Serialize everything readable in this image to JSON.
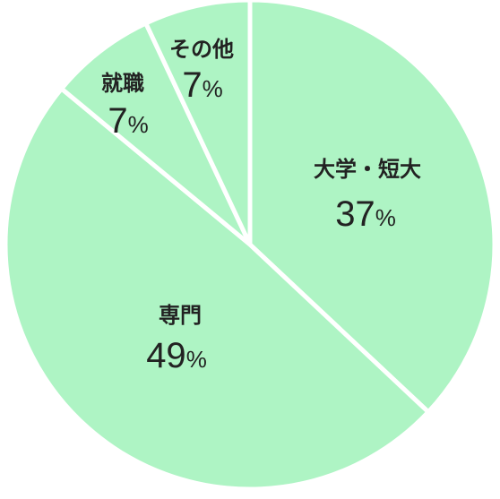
{
  "chart_data": {
    "type": "pie",
    "start": "top",
    "direction": "clockwise",
    "slices": [
      {
        "label": "大学・短大",
        "value": 37,
        "value_text": "37",
        "unit": "%",
        "color": "#aef4c4"
      },
      {
        "label": "専門",
        "value": 49,
        "value_text": "49",
        "unit": "%",
        "color": "#aef4c4"
      },
      {
        "label": "就職",
        "value": 7,
        "value_text": "7",
        "unit": "%",
        "color": "#aef4c4"
      },
      {
        "label": "その他",
        "value": 7,
        "value_text": "7",
        "unit": "%",
        "color": "#aef4c4"
      }
    ]
  }
}
